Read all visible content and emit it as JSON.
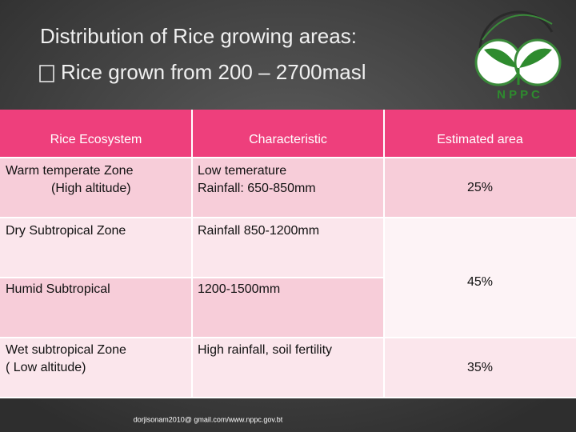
{
  "title": {
    "line1": "Distribution of Rice growing areas:",
    "line2": "Rice grown from 200 – 2700masl"
  },
  "logo": {
    "text": "N P P C"
  },
  "table": {
    "header": [
      "Rice Ecosystem",
      "Characteristic",
      "Estimated area"
    ],
    "rows": [
      {
        "ecosystem": [
          "Warm temperate Zone",
          "(High altitude)"
        ],
        "characteristic": [
          "Low temerature",
          "Rainfall: 650-850mm"
        ]
      },
      {
        "ecosystem": [
          "Dry Subtropical Zone"
        ],
        "characteristic": [
          "Rainfall 850-1200mm"
        ]
      },
      {
        "ecosystem": [
          "Humid Subtropical"
        ],
        "characteristic": [
          "1200-1500mm"
        ]
      },
      {
        "ecosystem": [
          "Wet subtropical Zone",
          "( Low altitude)"
        ],
        "characteristic": [
          "High rainfall, soil fertility"
        ]
      }
    ],
    "areas": [
      "25%",
      "45%",
      "35%"
    ]
  },
  "footer": "dorjisonam2010@ gmail.com/www.nppc.gov.bt"
}
